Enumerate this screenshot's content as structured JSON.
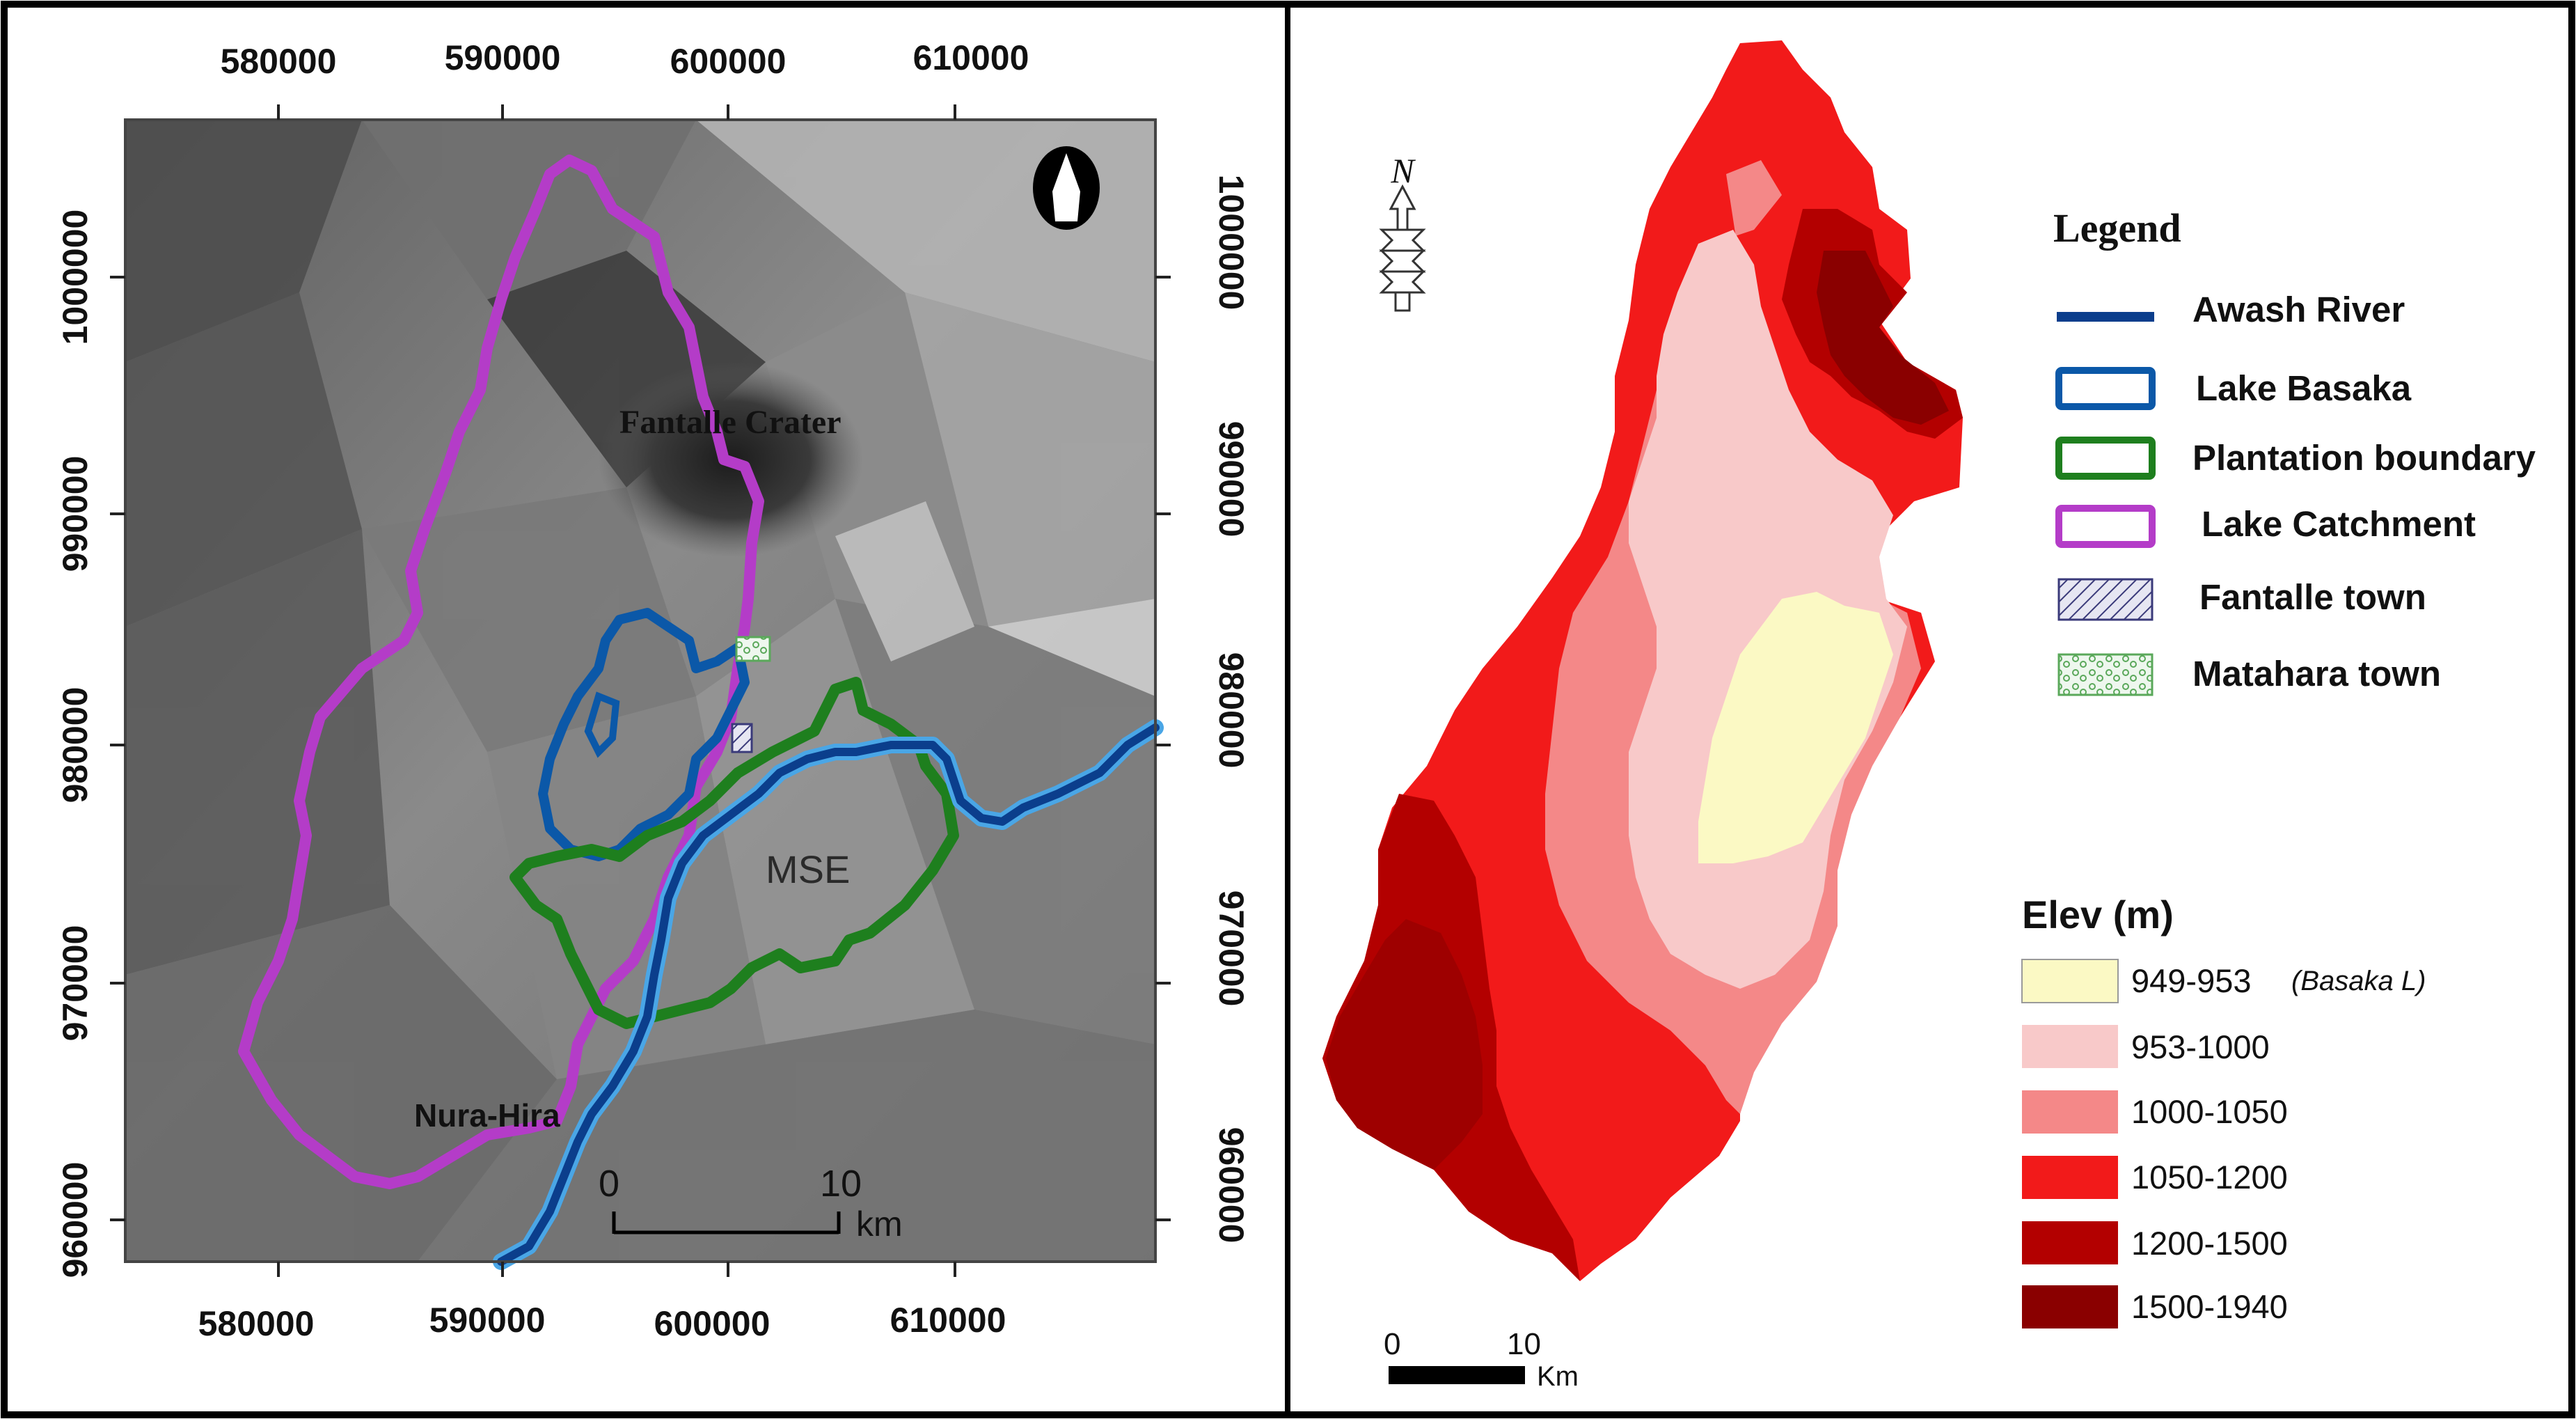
{
  "left_map": {
    "x_ticks_top": [
      "580000",
      "590000",
      "600000",
      "610000"
    ],
    "x_ticks_bottom": [
      "580000",
      "590000",
      "600000",
      "610000"
    ],
    "y_ticks_left": [
      "1000000",
      "990000",
      "980000",
      "970000",
      "960000"
    ],
    "y_ticks_right": [
      "1000000",
      "990000",
      "980000",
      "970000",
      "960000"
    ],
    "labels": {
      "crater": "Fantalle Crater",
      "plantation": "MSE",
      "village": "Nura-Hira"
    },
    "scale_bar": {
      "start": "0",
      "end": "10",
      "unit": "km"
    },
    "north_arrow_icon": "north-arrow-icon"
  },
  "right_map": {
    "north_label": "N",
    "legend": {
      "title": "Legend",
      "items": [
        {
          "label": "Awash River",
          "color": "#0b3e8c",
          "symbol": "line"
        },
        {
          "label": "Lake Basaka",
          "color": "#0b58a8",
          "symbol": "outline"
        },
        {
          "label": "Plantation boundary",
          "color": "#1e7f1e",
          "symbol": "outline"
        },
        {
          "label": "Lake Catchment",
          "color": "#b43cc8",
          "symbol": "outline"
        },
        {
          "label": "Fantalle town",
          "color": "#3a3a7a",
          "symbol": "hatch"
        },
        {
          "label": "Matahara town",
          "color": "#5aa85a",
          "symbol": "dots"
        }
      ]
    },
    "elevation": {
      "title": "Elev (m)",
      "classes": [
        {
          "label": "949-953",
          "note": "(Basaka L)",
          "color": "#fbf9c4"
        },
        {
          "label": "953-1000",
          "note": "",
          "color": "#f8c9c9"
        },
        {
          "label": "1000-1050",
          "note": "",
          "color": "#f48888"
        },
        {
          "label": "1050-1200",
          "note": "",
          "color": "#f21a1a"
        },
        {
          "label": "1200-1500",
          "note": "",
          "color": "#b30000"
        },
        {
          "label": "1500-1940",
          "note": "",
          "color": "#8a0000"
        }
      ]
    },
    "scale_bar": {
      "start": "0",
      "end": "10",
      "unit": "Km"
    }
  }
}
